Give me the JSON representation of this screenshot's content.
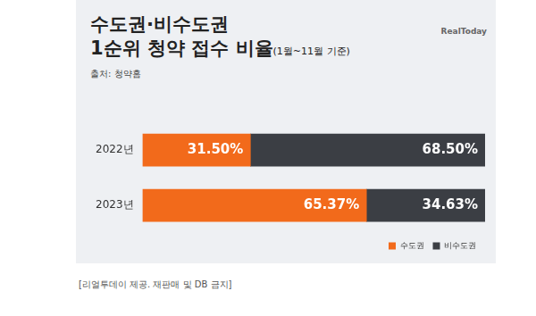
{
  "chart_data": {
    "type": "bar",
    "orientation": "horizontal",
    "stacked": true,
    "title": "수도권·비수도권 1순위 청약 접수 비율",
    "subtitle": "(1월~11월 기준)",
    "annotations": [
      "출처: 청약홈",
      "RealToday",
      "[리얼투데이 제공. 재판매 및 DB 금지]"
    ],
    "categories": [
      "2022년",
      "2023년"
    ],
    "series": [
      {
        "name": "수도권",
        "color": "#f26a1b",
        "values": [
          31.5,
          65.37
        ],
        "value_labels": [
          "31.50%",
          "65.37%"
        ]
      },
      {
        "name": "비수도권",
        "color": "#3b3e44",
        "values": [
          68.5,
          34.63
        ],
        "value_labels": [
          "68.50%",
          "34.63%"
        ]
      }
    ],
    "xlim": [
      0,
      100
    ],
    "tick_labels": "y",
    "data_labels": true,
    "grid": false,
    "legend": "bottom-right"
  }
}
